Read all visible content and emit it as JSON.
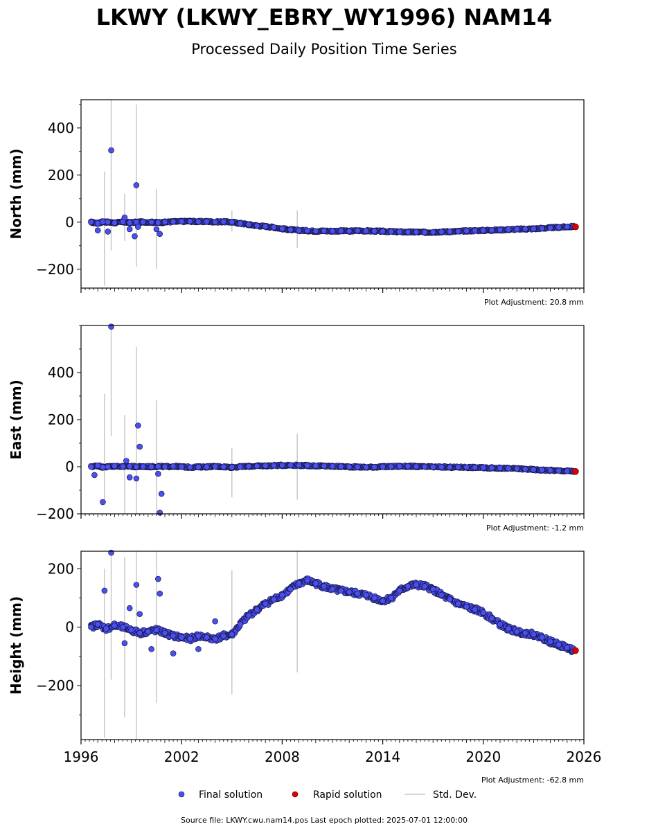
{
  "title": "LKWY (LKWY_EBRY_WY1996) NAM14",
  "subtitle": "Processed Daily Position Time Series",
  "footer": "Source file: LKWY.cwu.nam14.pos  Last epoch plotted: 2025-07-01 12:00:00",
  "legend": {
    "final": "Final solution",
    "rapid": "Rapid solution",
    "std": "Std. Dev.",
    "placement": "bottom-center"
  },
  "colors": {
    "final_fill": "#4a4ff0",
    "final_edge": "#101030",
    "rapid_fill": "#e00000",
    "std_dev": "#c8c8c8",
    "axis": "#000000"
  },
  "chart_data": [
    {
      "type": "scatter",
      "ylabel": "North (mm)",
      "adjustment": "Plot Adjustment: 20.8 mm",
      "xlim": [
        1996,
        2026
      ],
      "ylim": [
        -280,
        520
      ],
      "yticks": [
        -200,
        0,
        200,
        400
      ],
      "grid": false,
      "series": [
        {
          "name": "Final solution",
          "x": [
            1996.6,
            1997.0,
            1997.3,
            1997.6,
            1998.0,
            1998.5,
            1998.9,
            1999.3,
            1999.7,
            2000.2,
            2000.6,
            2001.0,
            2001.5,
            2002.0,
            2002.5,
            2003.0,
            2003.5,
            2004.0,
            2004.5,
            2005.0,
            2005.5,
            2006.0,
            2006.5,
            2007.0,
            2007.5,
            2008.0,
            2008.5,
            2009.0,
            2009.5,
            2010.0,
            2010.5,
            2011.0,
            2011.5,
            2012.0,
            2012.5,
            2013.0,
            2013.5,
            2014.0,
            2014.5,
            2015.0,
            2015.5,
            2016.0,
            2016.5,
            2017.0,
            2017.5,
            2018.0,
            2018.5,
            2019.0,
            2019.5,
            2020.0,
            2020.5,
            2021.0,
            2021.5,
            2022.0,
            2022.5,
            2023.0,
            2023.5,
            2024.0,
            2024.5,
            2025.0,
            2025.4
          ],
          "y": [
            0,
            -5,
            2,
            0,
            -3,
            1,
            -2,
            0,
            1,
            0,
            -2,
            0,
            2,
            3,
            4,
            2,
            3,
            1,
            2,
            0,
            -5,
            -10,
            -15,
            -18,
            -22,
            -28,
            -32,
            -35,
            -36,
            -38,
            -37,
            -38,
            -37,
            -38,
            -36,
            -37,
            -38,
            -39,
            -40,
            -41,
            -42,
            -42,
            -43,
            -42,
            -41,
            -40,
            -39,
            -37,
            -36,
            -35,
            -34,
            -33,
            -31,
            -30,
            -29,
            -28,
            -26,
            -24,
            -22,
            -20,
            -18
          ]
        },
        {
          "name": "Final solution outliers",
          "x": [
            1997.0,
            1997.6,
            1997.8,
            1998.6,
            1998.9,
            1999.2,
            1999.3,
            1999.4,
            2000.5,
            2000.7
          ],
          "y": [
            -35,
            -40,
            305,
            20,
            -30,
            -60,
            157,
            -20,
            -30,
            -50
          ]
        },
        {
          "name": "Rapid solution",
          "x": [
            2025.5
          ],
          "y": [
            -20
          ]
        },
        {
          "name": "Std. Dev.",
          "x": [
            1997.4,
            1997.8,
            1998.6,
            1999.3,
            2000.5,
            2005.0,
            2008.9
          ],
          "y_low": [
            -270,
            -120,
            -80,
            -190,
            -200,
            -40,
            -110
          ],
          "y_high": [
            215,
            520,
            120,
            500,
            140,
            50,
            50
          ]
        }
      ]
    },
    {
      "type": "scatter",
      "ylabel": "East (mm)",
      "adjustment": "Plot Adjustment: -1.2 mm",
      "xlim": [
        1996,
        2026
      ],
      "ylim": [
        -200,
        600
      ],
      "yticks": [
        -200,
        0,
        200,
        400
      ],
      "grid": false,
      "series": [
        {
          "name": "Final solution",
          "x": [
            1996.6,
            1997.0,
            1997.3,
            1997.6,
            1998.0,
            1998.5,
            1998.9,
            1999.3,
            1999.7,
            2000.2,
            2000.6,
            2001.0,
            2001.5,
            2002.0,
            2002.5,
            2003.0,
            2003.5,
            2004.0,
            2004.5,
            2005.0,
            2005.5,
            2006.0,
            2006.5,
            2007.0,
            2007.5,
            2008.0,
            2008.5,
            2009.0,
            2009.5,
            2010.0,
            2010.5,
            2011.0,
            2011.5,
            2012.0,
            2012.5,
            2013.0,
            2013.5,
            2014.0,
            2014.5,
            2015.0,
            2015.5,
            2016.0,
            2016.5,
            2017.0,
            2017.5,
            2018.0,
            2018.5,
            2019.0,
            2019.5,
            2020.0,
            2020.5,
            2021.0,
            2021.5,
            2022.0,
            2022.5,
            2023.0,
            2023.5,
            2024.0,
            2024.5,
            2025.0,
            2025.4
          ],
          "y": [
            0,
            5,
            -2,
            0,
            3,
            1,
            2,
            0,
            1,
            0,
            2,
            0,
            2,
            0,
            -2,
            -1,
            0,
            1,
            0,
            -2,
            0,
            2,
            3,
            4,
            5,
            6,
            7,
            6,
            5,
            4,
            3,
            2,
            1,
            0,
            -1,
            -2,
            -1,
            0,
            1,
            2,
            2,
            1,
            0,
            -1,
            -1,
            -2,
            -2,
            -2,
            -3,
            -4,
            -5,
            -6,
            -7,
            -8,
            -10,
            -12,
            -14,
            -15,
            -17,
            -18,
            -19
          ]
        },
        {
          "name": "Final solution outliers",
          "x": [
            1996.8,
            1997.3,
            1997.8,
            1998.7,
            1998.9,
            1999.3,
            1999.4,
            1999.5,
            2000.6,
            2000.7,
            2000.8
          ],
          "y": [
            -35,
            -150,
            595,
            25,
            -45,
            -50,
            175,
            85,
            -30,
            -195,
            -115
          ]
        },
        {
          "name": "Rapid solution",
          "x": [
            2025.5
          ],
          "y": [
            -20
          ]
        },
        {
          "name": "Std. Dev.",
          "x": [
            1997.4,
            1997.8,
            1998.6,
            1999.3,
            2000.5,
            2005.0,
            2008.9
          ],
          "y_low": [
            -150,
            130,
            -200,
            -200,
            -200,
            -130,
            -140
          ],
          "y_high": [
            310,
            600,
            220,
            510,
            285,
            80,
            140
          ]
        }
      ]
    },
    {
      "type": "scatter",
      "ylabel": "Height (mm)",
      "adjustment": "Plot Adjustment: -62.8 mm",
      "xlim": [
        1996,
        2026
      ],
      "xticks": [
        1996,
        2002,
        2008,
        2014,
        2020,
        2026
      ],
      "ylim": [
        -385,
        260
      ],
      "yticks": [
        -200,
        0,
        200
      ],
      "grid": false,
      "series": [
        {
          "name": "Final solution",
          "x": [
            1996.6,
            1997.0,
            1997.5,
            1998.0,
            1998.5,
            1999.0,
            1999.5,
            2000.0,
            2000.5,
            2001.0,
            2001.5,
            2002.0,
            2002.5,
            2003.0,
            2003.5,
            2004.0,
            2004.5,
            2005.0,
            2005.5,
            2006.0,
            2006.5,
            2007.0,
            2007.5,
            2008.0,
            2008.5,
            2009.0,
            2009.5,
            2010.0,
            2010.5,
            2011.0,
            2011.5,
            2012.0,
            2012.5,
            2013.0,
            2013.5,
            2014.0,
            2014.5,
            2015.0,
            2015.5,
            2016.0,
            2016.5,
            2017.0,
            2017.5,
            2018.0,
            2018.5,
            2019.0,
            2019.5,
            2020.0,
            2020.5,
            2021.0,
            2021.5,
            2022.0,
            2022.5,
            2023.0,
            2023.5,
            2024.0,
            2024.5,
            2025.0,
            2025.4
          ],
          "y": [
            0,
            10,
            -5,
            5,
            0,
            -10,
            -20,
            -15,
            -10,
            -20,
            -30,
            -35,
            -40,
            -30,
            -35,
            -40,
            -30,
            -25,
            10,
            40,
            60,
            80,
            95,
            110,
            130,
            150,
            160,
            150,
            140,
            130,
            125,
            120,
            115,
            110,
            100,
            90,
            100,
            125,
            140,
            145,
            140,
            130,
            110,
            95,
            80,
            70,
            60,
            50,
            30,
            10,
            -5,
            -15,
            -20,
            -25,
            -35,
            -50,
            -60,
            -70,
            -80
          ]
        },
        {
          "name": "Final solution outliers",
          "x": [
            1997.4,
            1997.8,
            1998.6,
            1998.9,
            1999.3,
            1999.5,
            2000.2,
            2000.6,
            2000.7,
            2001.5,
            2003.0,
            2004.0
          ],
          "y": [
            125,
            255,
            -55,
            65,
            145,
            45,
            -75,
            165,
            115,
            -90,
            -75,
            20
          ]
        },
        {
          "name": "Rapid solution",
          "x": [
            2025.5
          ],
          "y": [
            -80
          ]
        },
        {
          "name": "Std. Dev.",
          "x": [
            1997.4,
            1997.8,
            1998.6,
            1999.3,
            2000.5,
            2005.0,
            2008.9
          ],
          "y_low": [
            -380,
            -180,
            -310,
            -385,
            -260,
            -230,
            -155
          ],
          "y_high": [
            200,
            260,
            240,
            260,
            260,
            195,
            260
          ]
        }
      ]
    }
  ]
}
